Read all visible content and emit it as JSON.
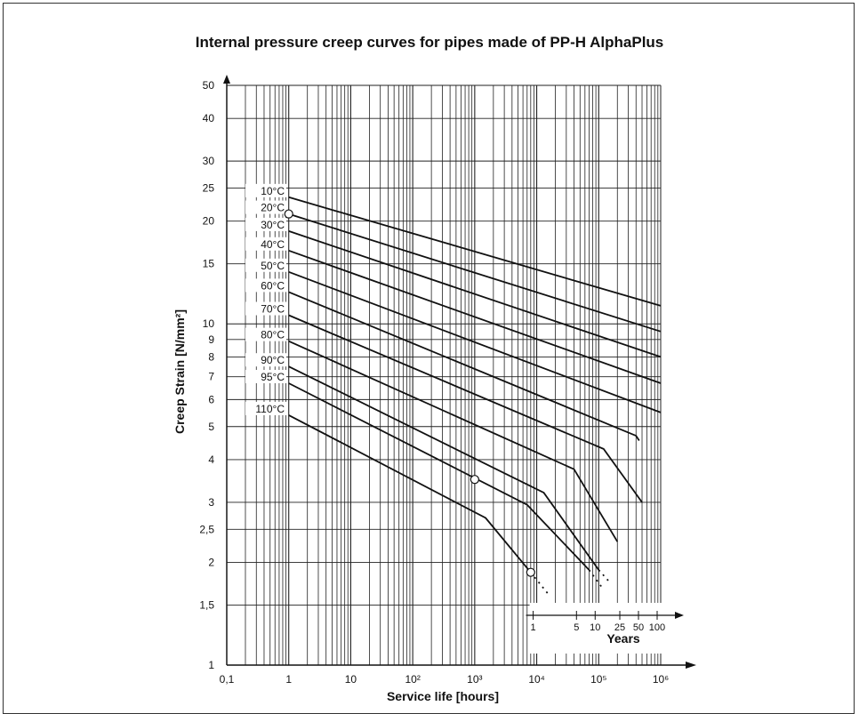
{
  "chart_data": {
    "type": "line",
    "title": "Internal pressure creep curves for pipes made of PP-H AlphaPlus",
    "xlabel": "Service life [hours]",
    "ylabel": "Creep Strain [N/mm²]",
    "x_scale": "log",
    "y_scale": "log",
    "xlim": [
      0.1,
      1000000
    ],
    "ylim": [
      1,
      50
    ],
    "grid": true,
    "x_ticks": [
      {
        "value": 0.1,
        "label": "0,1"
      },
      {
        "value": 1,
        "label": "1"
      },
      {
        "value": 10,
        "label": "10"
      },
      {
        "value": 100,
        "label": "10²"
      },
      {
        "value": 1000,
        "label": "10³"
      },
      {
        "value": 10000,
        "label": "10⁴"
      },
      {
        "value": 100000,
        "label": "10⁵"
      },
      {
        "value": 1000000,
        "label": "10⁶"
      }
    ],
    "y_ticks": [
      {
        "value": 1,
        "label": "1"
      },
      {
        "value": 1.5,
        "label": "1,5"
      },
      {
        "value": 2,
        "label": "2"
      },
      {
        "value": 2.5,
        "label": "2,5"
      },
      {
        "value": 3,
        "label": "3"
      },
      {
        "value": 4,
        "label": "4"
      },
      {
        "value": 5,
        "label": "5"
      },
      {
        "value": 6,
        "label": "6"
      },
      {
        "value": 7,
        "label": "7"
      },
      {
        "value": 8,
        "label": "8"
      },
      {
        "value": 9,
        "label": "9"
      },
      {
        "value": 10,
        "label": "10"
      },
      {
        "value": 15,
        "label": "15"
      },
      {
        "value": 20,
        "label": "20"
      },
      {
        "value": 25,
        "label": "25"
      },
      {
        "value": 30,
        "label": "30"
      },
      {
        "value": 40,
        "label": "40"
      },
      {
        "value": 50,
        "label": "50"
      }
    ],
    "secondary_axis": {
      "label": "Years",
      "ticks": [
        {
          "value": 1,
          "label": "1"
        },
        {
          "value": 5,
          "label": "5"
        },
        {
          "value": 10,
          "label": "10"
        },
        {
          "value": 25,
          "label": "25"
        },
        {
          "value": 50,
          "label": "50"
        },
        {
          "value": 100,
          "label": "100"
        }
      ]
    },
    "series": [
      {
        "name": "10°C",
        "points": [
          [
            1,
            23.5
          ],
          [
            1000000,
            11.3
          ]
        ],
        "dotted": []
      },
      {
        "name": "20°C",
        "points": [
          [
            1,
            21
          ],
          [
            1000000,
            9.5
          ]
        ],
        "dotted": []
      },
      {
        "name": "30°C",
        "points": [
          [
            1,
            18.7
          ],
          [
            1000000,
            8.0
          ]
        ],
        "dotted": []
      },
      {
        "name": "40°C",
        "points": [
          [
            1,
            16.4
          ],
          [
            1000000,
            6.7
          ]
        ],
        "dotted": []
      },
      {
        "name": "50°C",
        "points": [
          [
            1,
            14.2
          ],
          [
            1000000,
            5.5
          ]
        ],
        "dotted": []
      },
      {
        "name": "60°C",
        "points": [
          [
            1,
            12.4
          ],
          [
            400000,
            4.7
          ],
          [
            450000,
            4.55
          ]
        ],
        "dotted": []
      },
      {
        "name": "70°C",
        "points": [
          [
            1,
            10.6
          ],
          [
            120000,
            4.3
          ],
          [
            500000,
            3.0
          ]
        ],
        "dotted": []
      },
      {
        "name": "80°C",
        "points": [
          [
            1,
            8.9
          ],
          [
            40000,
            3.75
          ],
          [
            200000,
            2.3
          ]
        ],
        "dotted": []
      },
      {
        "name": "90°C",
        "points": [
          [
            1,
            7.5
          ],
          [
            13000,
            3.2
          ],
          [
            100000,
            1.9
          ]
        ],
        "dotted": [
          [
            100000,
            1.9
          ],
          [
            150000,
            1.75
          ]
        ]
      },
      {
        "name": "95°C",
        "points": [
          [
            1,
            6.7
          ],
          [
            7000,
            2.95
          ],
          [
            70000,
            1.9
          ]
        ],
        "dotted": [
          [
            70000,
            1.9
          ],
          [
            110000,
            1.7
          ]
        ]
      },
      {
        "name": "110°C",
        "points": [
          [
            1,
            5.4
          ],
          [
            1500,
            2.7
          ],
          [
            8000,
            1.87
          ]
        ],
        "dotted": [
          [
            8000,
            1.87
          ],
          [
            16000,
            1.6
          ]
        ]
      }
    ],
    "markers": [
      {
        "x": 1,
        "y": 21
      },
      {
        "x": 1000,
        "y": 3.5
      },
      {
        "x": 8000,
        "y": 1.87
      }
    ]
  }
}
